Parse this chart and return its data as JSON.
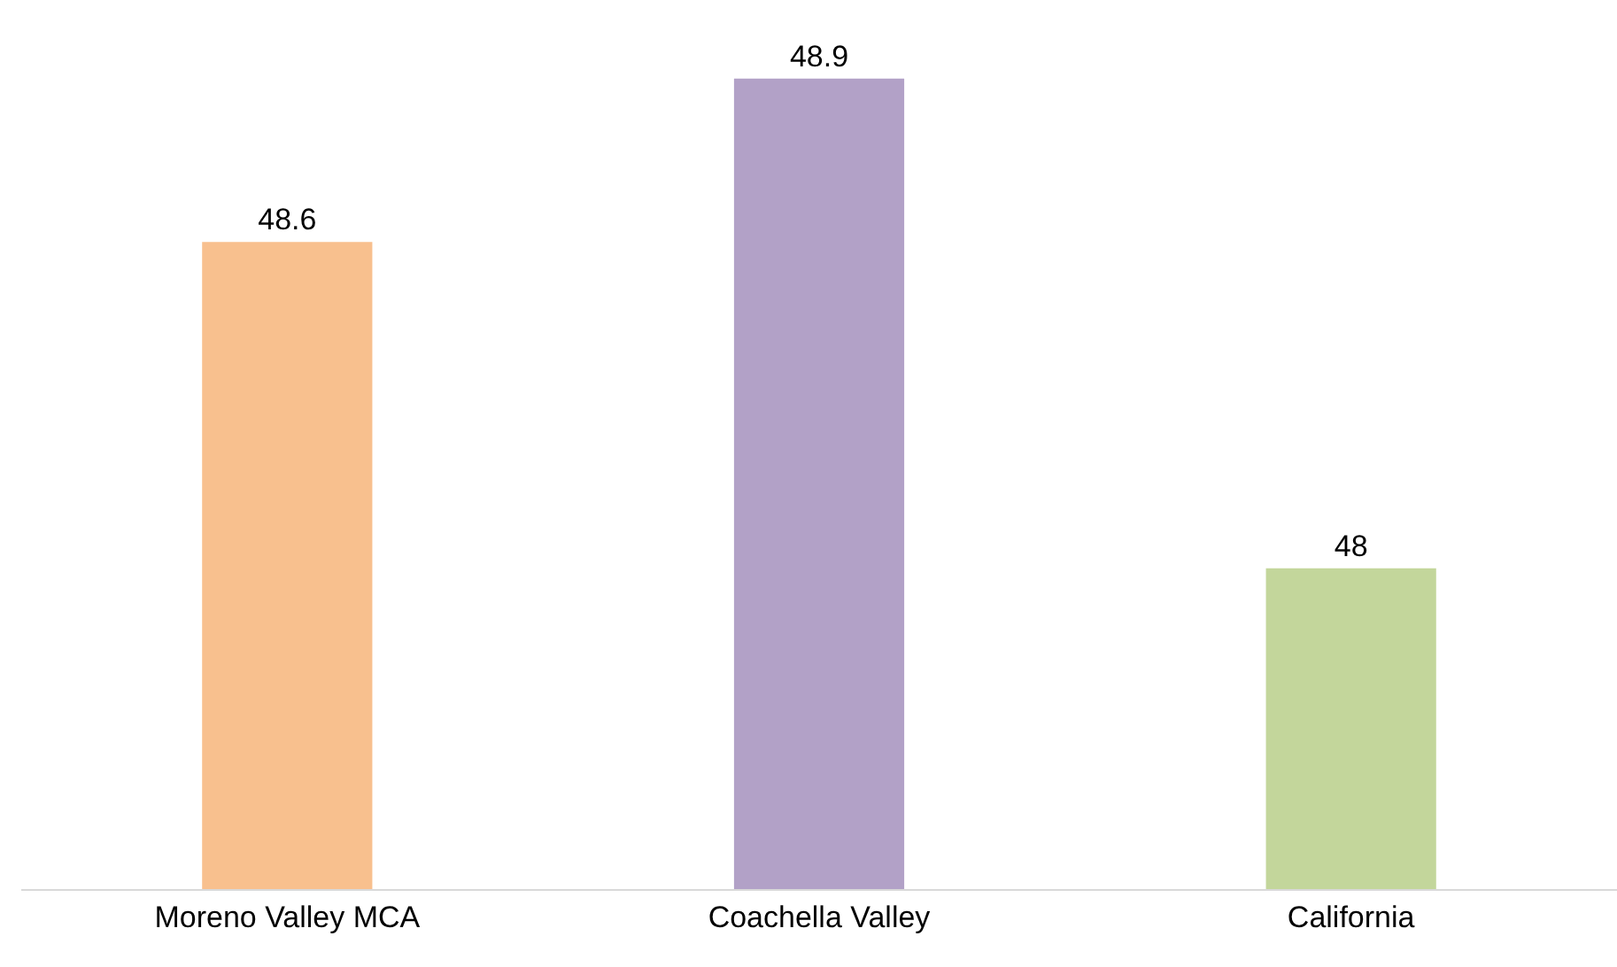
{
  "chart_data": {
    "type": "bar",
    "categories": [
      "Moreno Valley MCA",
      "Coachella Valley",
      "California"
    ],
    "values": [
      48.6,
      48.9,
      48
    ],
    "colors": [
      "#f8c08e",
      "#b2a1c7",
      "#c3d69b"
    ],
    "data_labels": true
  }
}
